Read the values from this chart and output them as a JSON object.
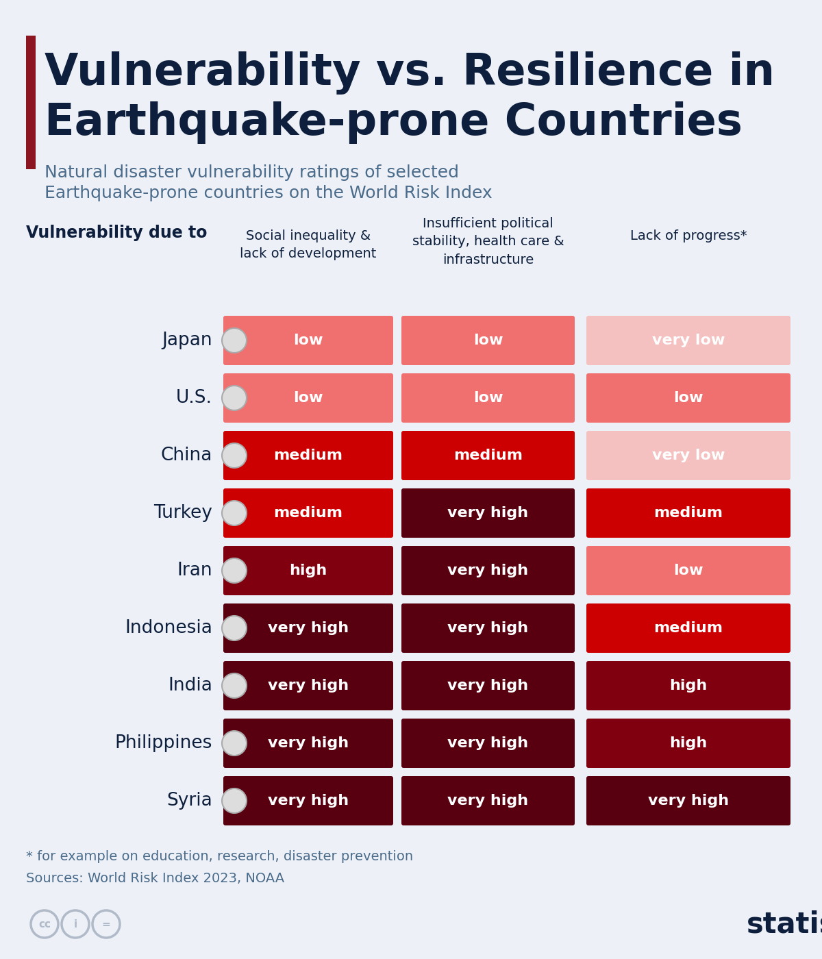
{
  "title_line1": "Vulnerability vs. Resilience in",
  "title_line2": "Earthquake-prone Countries",
  "subtitle_line1": "Natural disaster vulnerability ratings of selected",
  "subtitle_line2": "Earthquake-prone countries on the World Risk Index",
  "section_label": "Vulnerability due to",
  "col_headers": [
    "Social inequality &\nlack of development",
    "Insufficient political\nstability, health care &\ninfrastructure",
    "Lack of progress*"
  ],
  "countries": [
    "Japan",
    "U.S.",
    "China",
    "Turkey",
    "Iran",
    "Indonesia",
    "India",
    "Philippines",
    "Syria"
  ],
  "data": [
    [
      "low",
      "low",
      "very low"
    ],
    [
      "low",
      "low",
      "low"
    ],
    [
      "medium",
      "medium",
      "very low"
    ],
    [
      "medium",
      "very high",
      "medium"
    ],
    [
      "high",
      "very high",
      "low"
    ],
    [
      "very high",
      "very high",
      "medium"
    ],
    [
      "very high",
      "very high",
      "high"
    ],
    [
      "very high",
      "very high",
      "high"
    ],
    [
      "very high",
      "very high",
      "very high"
    ]
  ],
  "color_map": {
    "very low": "#f5c0c0",
    "low": "#f07070",
    "medium": "#cc0000",
    "high": "#800010",
    "very high": "#580010"
  },
  "bg_color": "#edf1f7",
  "title_color": "#0d1f3c",
  "subtitle_color": "#4a6b8a",
  "section_label_color": "#0d1f3c",
  "col_header_color": "#0d1f3c",
  "country_color": "#0d1f3c",
  "cell_text_color": "#ffffff",
  "accent_bar_color": "#8b1520",
  "footnote_color": "#4a6b8a",
  "statista_color": "#0d1f3c",
  "footnote1": "* for example on education, research, disaster prevention",
  "footnote2": "Sources: World Risk Index 2023, NOAA"
}
